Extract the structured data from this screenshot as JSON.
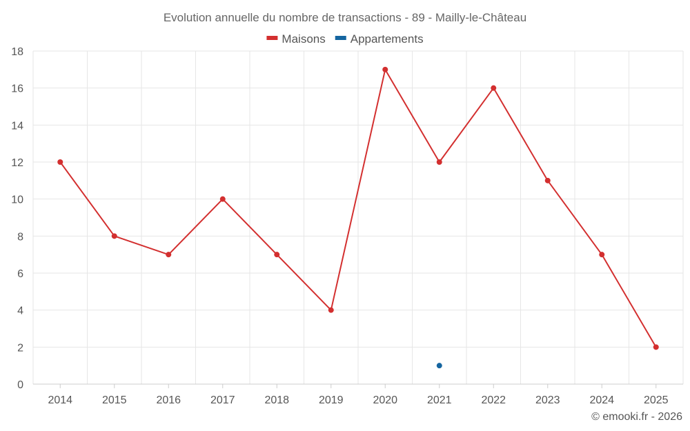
{
  "chart_data": {
    "type": "line",
    "title": "Evolution annuelle du nombre de transactions - 89 - Mailly-le-Château",
    "categories": [
      "2014",
      "2015",
      "2016",
      "2017",
      "2018",
      "2019",
      "2020",
      "2021",
      "2022",
      "2023",
      "2024",
      "2025"
    ],
    "series": [
      {
        "name": "Maisons",
        "color": "#d32f2f",
        "values": [
          12,
          8,
          7,
          10,
          7,
          4,
          17,
          12,
          16,
          11,
          7,
          2
        ]
      },
      {
        "name": "Appartements",
        "color": "#1565a0",
        "values": [
          null,
          null,
          null,
          null,
          null,
          null,
          null,
          1,
          null,
          null,
          null,
          null
        ]
      }
    ],
    "ylim": [
      0,
      18
    ],
    "yticks": [
      0,
      2,
      4,
      6,
      8,
      10,
      12,
      14,
      16,
      18
    ],
    "xlabel": "",
    "ylabel": "",
    "grid": true,
    "legend_position": "top-center"
  },
  "footer": {
    "copyright": "© emooki.fr - 2026"
  }
}
